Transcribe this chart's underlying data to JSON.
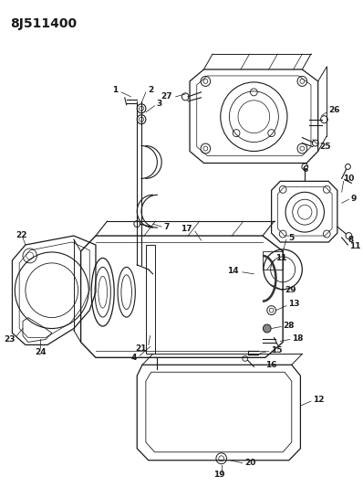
{
  "title": "8J511400",
  "bg_color": "#ffffff",
  "line_color": "#1a1a1a",
  "title_fontsize": 10,
  "fig_w": 3.98,
  "fig_h": 5.33,
  "dpi": 100
}
